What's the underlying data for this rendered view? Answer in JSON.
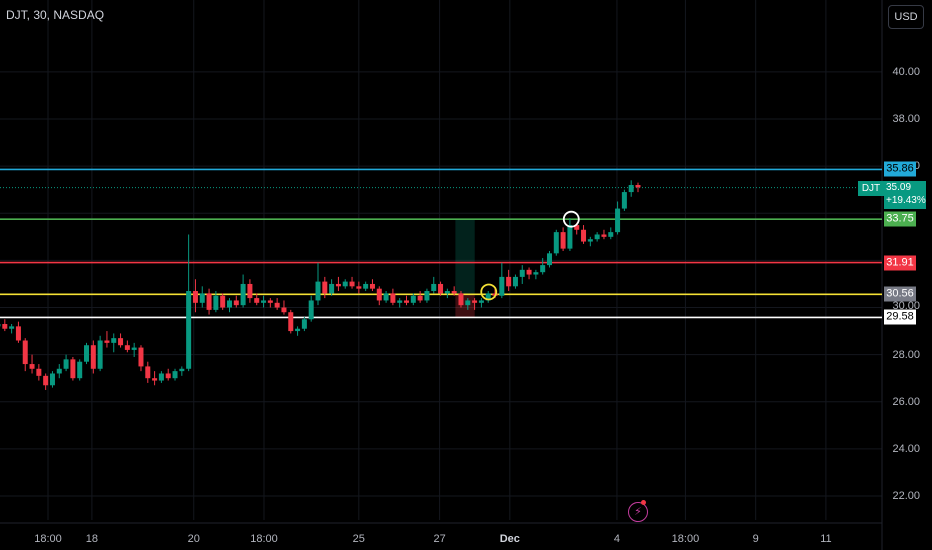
{
  "header": {
    "symbol": "DJT",
    "interval": "30",
    "exchange": "NASDAQ",
    "title": "DJT, 30, NASDAQ",
    "currency": "USD"
  },
  "colors": {
    "up": "#089981",
    "down": "#f23645",
    "background": "#000000",
    "grid": "#1a1d25",
    "line_cyan": "#22a9d8",
    "line_green": "#4caf50",
    "line_red": "#f23645",
    "line_yellow": "#f5e135",
    "line_white": "#ffffff",
    "accent": "#c33c9e"
  },
  "chart_data": {
    "type": "candlestick",
    "symbol": "DJT",
    "interval": "30",
    "ylim": [
      20.0,
      42.5
    ],
    "yticks": [
      22,
      24,
      26,
      28,
      30,
      32,
      34,
      36,
      38,
      40
    ],
    "ytick_labels": [
      "22.00",
      "24.00",
      "26.00",
      "28.00",
      "30.00",
      "32.00",
      "34.00",
      "36.00",
      "38.00",
      "40.00"
    ],
    "xticks": [
      {
        "label": "18:00",
        "day": 15.75,
        "bold": false
      },
      {
        "label": "18",
        "day": 17.0,
        "bold": false
      },
      {
        "label": "20",
        "day": 19.9,
        "bold": false
      },
      {
        "label": "18:00",
        "day": 21.9,
        "bold": false
      },
      {
        "label": "25",
        "day": 24.6,
        "bold": false
      },
      {
        "label": "27",
        "day": 26.9,
        "bold": false
      },
      {
        "label": "Dec",
        "day": 28.9,
        "bold": true
      },
      {
        "label": "4",
        "day": 31.95,
        "bold": false
      },
      {
        "label": "18:00",
        "day": 33.9,
        "bold": false
      },
      {
        "label": "9",
        "day": 35.9,
        "bold": false
      },
      {
        "label": "11",
        "day": 37.9,
        "bold": false
      }
    ],
    "hlines": [
      {
        "label": "35.86",
        "value": 35.86,
        "color": "#22a9d8",
        "text_color": "#000000"
      },
      {
        "label": "33.75",
        "value": 33.75,
        "color": "#4caf50",
        "text_color": "#ffffff"
      },
      {
        "label": "31.91",
        "value": 31.91,
        "color": "#f23645",
        "text_color": "#ffffff"
      },
      {
        "label": "30.56",
        "value": 30.56,
        "color": "#f5e135",
        "text_color": "#ffffff"
      },
      {
        "label": "29.58",
        "value": 29.58,
        "color": "#ffffff",
        "text_color": "#000000"
      }
    ],
    "hidden_tag": "30.00",
    "last_price": {
      "symbol": "DJT",
      "price": "35.09",
      "change": "+19.43%",
      "value": 35.09
    },
    "position": {
      "entry": 30.56,
      "target": 33.75,
      "stop": 29.58,
      "start_day": 27.35,
      "end_day": 27.9
    },
    "markers": [
      {
        "day": 28.3,
        "price": 30.66,
        "color": "#f5e135"
      },
      {
        "day": 30.65,
        "price": 33.75,
        "color": "#ffffff"
      }
    ],
    "candles": [
      [
        29.2,
        29.4,
        29.0,
        29.3
      ],
      [
        29.3,
        29.5,
        29.0,
        29.1
      ],
      [
        29.1,
        29.3,
        28.9,
        29.2
      ],
      [
        29.2,
        29.4,
        28.5,
        28.6
      ],
      [
        28.6,
        28.7,
        27.3,
        27.6
      ],
      [
        27.6,
        28.0,
        27.2,
        27.4
      ],
      [
        27.4,
        27.6,
        26.9,
        27.1
      ],
      [
        27.1,
        27.2,
        26.5,
        26.7
      ],
      [
        26.7,
        27.3,
        26.6,
        27.2
      ],
      [
        27.2,
        27.6,
        27.0,
        27.4
      ],
      [
        27.4,
        28.0,
        27.3,
        27.8
      ],
      [
        27.8,
        27.9,
        26.9,
        27.0
      ],
      [
        27.0,
        27.8,
        26.9,
        27.7
      ],
      [
        27.7,
        28.5,
        27.6,
        28.4
      ],
      [
        28.4,
        28.6,
        27.2,
        27.4
      ],
      [
        27.4,
        28.8,
        27.3,
        28.6
      ],
      [
        28.6,
        29.0,
        28.3,
        28.5
      ],
      [
        28.5,
        28.9,
        28.1,
        28.7
      ],
      [
        28.7,
        28.9,
        28.3,
        28.4
      ],
      [
        28.4,
        28.6,
        28.1,
        28.2
      ],
      [
        28.2,
        28.5,
        27.9,
        28.3
      ],
      [
        28.3,
        28.4,
        27.3,
        27.5
      ],
      [
        27.5,
        27.7,
        26.8,
        27.0
      ],
      [
        27.0,
        27.3,
        26.7,
        26.9
      ],
      [
        26.9,
        27.3,
        26.8,
        27.2
      ],
      [
        27.2,
        27.4,
        26.9,
        27.0
      ],
      [
        27.0,
        27.4,
        26.9,
        27.3
      ],
      [
        27.3,
        27.5,
        27.1,
        27.4
      ],
      [
        27.4,
        33.1,
        27.3,
        30.7
      ],
      [
        30.7,
        31.2,
        29.8,
        30.2
      ],
      [
        30.2,
        30.9,
        30.0,
        30.6
      ],
      [
        30.6,
        30.8,
        29.7,
        29.9
      ],
      [
        29.9,
        30.7,
        29.8,
        30.5
      ],
      [
        30.5,
        30.6,
        29.9,
        30.0
      ],
      [
        30.0,
        30.4,
        29.8,
        30.3
      ],
      [
        30.3,
        30.5,
        30.0,
        30.1
      ],
      [
        30.1,
        31.4,
        30.0,
        31.0
      ],
      [
        31.0,
        31.2,
        30.2,
        30.4
      ],
      [
        30.4,
        30.6,
        30.1,
        30.2
      ],
      [
        30.2,
        30.5,
        30.0,
        30.3
      ],
      [
        30.3,
        30.4,
        30.0,
        30.2
      ],
      [
        30.2,
        30.4,
        29.9,
        30.0
      ],
      [
        30.0,
        30.3,
        29.7,
        29.8
      ],
      [
        29.8,
        29.9,
        28.9,
        29.0
      ],
      [
        29.0,
        29.2,
        28.8,
        29.1
      ],
      [
        29.1,
        29.6,
        29.0,
        29.5
      ],
      [
        29.5,
        30.5,
        29.4,
        30.3
      ],
      [
        30.3,
        31.9,
        30.1,
        31.1
      ],
      [
        31.1,
        31.3,
        30.4,
        30.6
      ],
      [
        30.6,
        31.2,
        30.5,
        31.0
      ],
      [
        31.0,
        31.3,
        30.7,
        30.9
      ],
      [
        30.9,
        31.2,
        30.8,
        31.1
      ],
      [
        31.1,
        31.3,
        30.8,
        30.9
      ],
      [
        30.9,
        31.1,
        30.6,
        30.8
      ],
      [
        30.8,
        31.1,
        30.7,
        31.0
      ],
      [
        31.0,
        31.2,
        30.7,
        30.8
      ],
      [
        30.8,
        30.9,
        30.1,
        30.3
      ],
      [
        30.3,
        30.7,
        30.2,
        30.6
      ],
      [
        30.6,
        30.8,
        30.1,
        30.2
      ],
      [
        30.2,
        30.4,
        30.0,
        30.3
      ],
      [
        30.3,
        30.5,
        30.1,
        30.2
      ],
      [
        30.2,
        30.6,
        30.1,
        30.5
      ],
      [
        30.5,
        30.7,
        30.2,
        30.3
      ],
      [
        30.3,
        30.8,
        30.2,
        30.7
      ],
      [
        30.7,
        31.3,
        30.6,
        31.0
      ],
      [
        31.0,
        31.1,
        30.5,
        30.6
      ],
      [
        30.6,
        30.8,
        30.4,
        30.7
      ],
      [
        30.7,
        30.9,
        30.5,
        30.6
      ],
      [
        30.6,
        30.7,
        30.0,
        30.1
      ],
      [
        30.1,
        30.4,
        29.9,
        30.3
      ],
      [
        30.3,
        30.4,
        29.9,
        30.2
      ],
      [
        30.2,
        30.4,
        30.0,
        30.3
      ],
      [
        30.3,
        30.7,
        30.2,
        30.6
      ],
      [
        30.6,
        30.8,
        30.4,
        30.5
      ],
      [
        30.5,
        31.9,
        30.4,
        31.3
      ],
      [
        31.3,
        31.6,
        30.7,
        30.9
      ],
      [
        30.9,
        31.4,
        30.8,
        31.3
      ],
      [
        31.3,
        31.8,
        31.0,
        31.6
      ],
      [
        31.6,
        31.7,
        31.2,
        31.4
      ],
      [
        31.4,
        31.6,
        31.2,
        31.5
      ],
      [
        31.5,
        32.1,
        31.4,
        31.8
      ],
      [
        31.8,
        32.4,
        31.7,
        32.3
      ],
      [
        32.3,
        33.3,
        32.2,
        33.2
      ],
      [
        33.2,
        33.4,
        32.4,
        32.5
      ],
      [
        32.5,
        33.8,
        32.4,
        33.5
      ],
      [
        33.5,
        33.6,
        33.1,
        33.3
      ],
      [
        33.3,
        33.5,
        32.7,
        32.8
      ],
      [
        32.8,
        33.0,
        32.6,
        32.9
      ],
      [
        32.9,
        33.2,
        32.8,
        33.1
      ],
      [
        33.1,
        33.3,
        32.9,
        33.0
      ],
      [
        33.0,
        33.4,
        32.9,
        33.2
      ],
      [
        33.2,
        34.5,
        33.1,
        34.2
      ],
      [
        34.2,
        35.0,
        34.1,
        34.9
      ],
      [
        34.9,
        35.4,
        34.7,
        35.2
      ],
      [
        35.2,
        35.3,
        34.9,
        35.1
      ]
    ]
  }
}
